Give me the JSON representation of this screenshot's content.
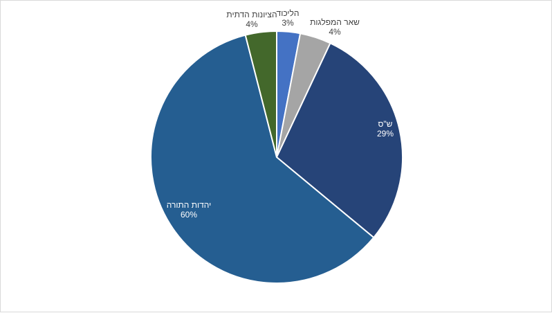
{
  "chart_data": {
    "type": "pie",
    "title": "",
    "legend": "none",
    "slices": [
      {
        "label": "הליכוד",
        "value": 3,
        "display": "3%",
        "color": "#4472c4"
      },
      {
        "label": "שאר המפלגות",
        "value": 4,
        "display": "4%",
        "color": "#a5a5a5"
      },
      {
        "label": "ש\"ס",
        "value": 29,
        "display": "29%",
        "color": "#264478"
      },
      {
        "label": "יהדות התורה",
        "value": 60,
        "display": "60%",
        "color": "#255e91"
      },
      {
        "label": "הציונות הדתית",
        "value": 4,
        "display": "4%",
        "color": "#43682b"
      }
    ]
  }
}
